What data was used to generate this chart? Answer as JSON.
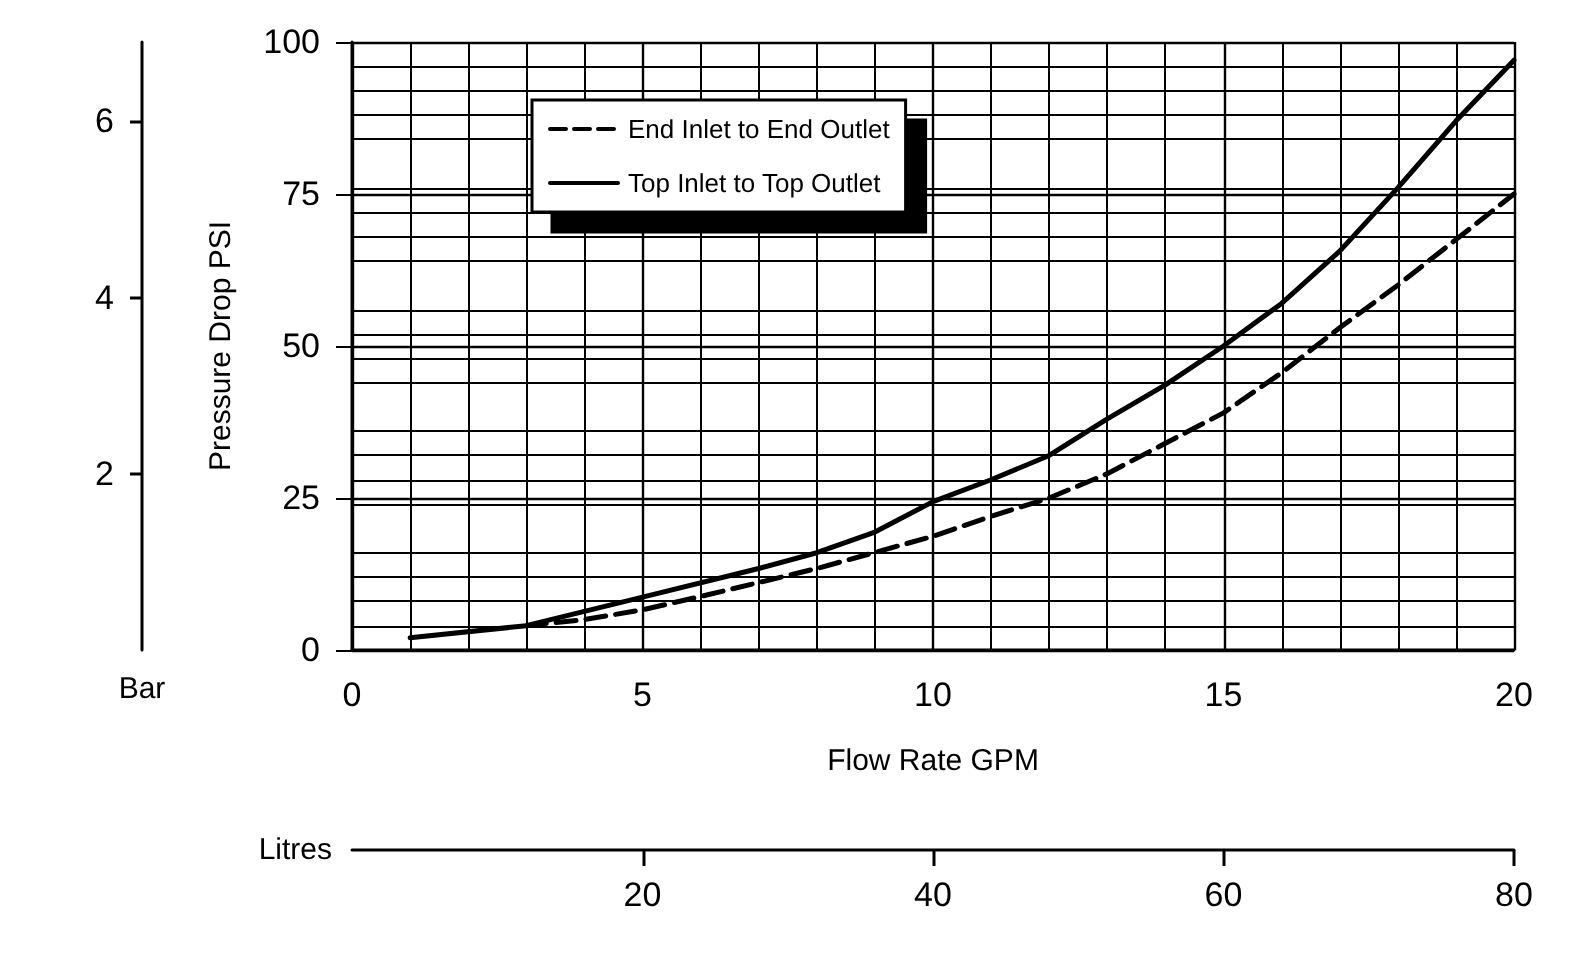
{
  "chart_data": {
    "type": "line",
    "xlabel": "Flow Rate GPM",
    "ylabel": "Pressure Drop PSI",
    "y2label": "Bar",
    "x2label": "Litres",
    "xlim": [
      0,
      20
    ],
    "xticks": [
      0,
      5,
      10,
      15,
      20
    ],
    "ylim": [
      0,
      100
    ],
    "yticks": [
      0,
      25,
      50,
      75,
      100
    ],
    "y2lim": [
      0,
      6.9
    ],
    "y2ticks": [
      2,
      4,
      6
    ],
    "x2lim": [
      0,
      80
    ],
    "x2ticks": [
      20,
      40,
      60,
      80
    ],
    "grid": true,
    "legend": "top left",
    "marker": "none",
    "series": [
      {
        "name": "End Inlet to End Outlet",
        "color": "#000000",
        "line_style": "dashed",
        "x": [
          3,
          4,
          5,
          6,
          8,
          10,
          11,
          12,
          13,
          14,
          15,
          16,
          17,
          18,
          19,
          20
        ],
        "values": [
          4,
          5,
          6.6,
          8.8,
          13.4,
          18.7,
          22,
          25,
          29,
          34,
          39,
          45.6,
          53,
          60,
          67.5,
          75
        ]
      },
      {
        "name": "Top Inlet to Top Outlet",
        "color": "#000000",
        "line_style": "solid",
        "x": [
          1,
          3,
          5,
          7,
          8,
          9,
          10,
          11,
          12,
          13,
          14,
          15,
          16,
          17,
          18,
          19,
          20
        ],
        "values": [
          2,
          4,
          8.7,
          13.4,
          16,
          19.4,
          24.4,
          28,
          32,
          38,
          43.6,
          50,
          57,
          65.6,
          76,
          87,
          97
        ]
      }
    ]
  }
}
